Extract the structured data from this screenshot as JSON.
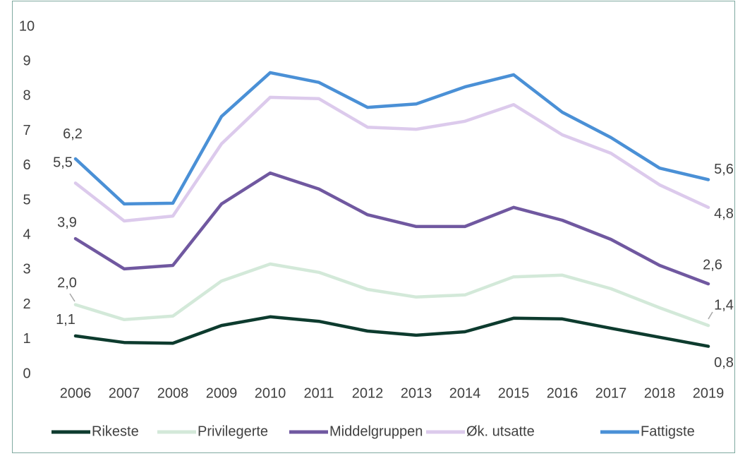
{
  "chart_data": {
    "type": "line",
    "x": [
      2006,
      2007,
      2008,
      2009,
      2010,
      2011,
      2012,
      2013,
      2014,
      2015,
      2016,
      2017,
      2018,
      2019
    ],
    "ylim": [
      0,
      10
    ],
    "yticks": [
      0,
      1,
      2,
      3,
      4,
      5,
      6,
      7,
      8,
      9,
      10
    ],
    "grid": false,
    "legend": "bottom",
    "series": [
      {
        "name": "Rikeste",
        "color": "#0d3b2e",
        "values": [
          1.1,
          0.91,
          0.89,
          1.4,
          1.65,
          1.52,
          1.24,
          1.12,
          1.22,
          1.61,
          1.59,
          1.32,
          1.06,
          0.8
        ],
        "value_labels": [
          "1,1",
          null,
          null,
          null,
          null,
          null,
          null,
          null,
          null,
          null,
          null,
          null,
          null,
          "0,8"
        ]
      },
      {
        "name": "Privilegerte",
        "color": "#d3e9d9",
        "values": [
          2.0,
          1.57,
          1.67,
          2.68,
          3.17,
          2.93,
          2.44,
          2.22,
          2.28,
          2.8,
          2.85,
          2.46,
          1.91,
          1.4
        ],
        "value_labels": [
          "2,0",
          null,
          null,
          null,
          null,
          null,
          null,
          null,
          null,
          null,
          null,
          null,
          null,
          "1,4"
        ]
      },
      {
        "name": "Middelgruppen",
        "color": "#7058a0",
        "values": [
          3.9,
          3.03,
          3.13,
          4.9,
          5.79,
          5.33,
          4.59,
          4.25,
          4.25,
          4.8,
          4.43,
          3.88,
          3.13,
          2.6
        ],
        "value_labels": [
          "3,9",
          null,
          null,
          null,
          null,
          null,
          null,
          null,
          null,
          null,
          null,
          null,
          null,
          "2,6"
        ]
      },
      {
        "name": "Øk. utsatte",
        "color": "#dccaec",
        "values": [
          5.5,
          4.41,
          4.55,
          6.63,
          7.97,
          7.93,
          7.11,
          7.05,
          7.28,
          7.76,
          6.89,
          6.36,
          5.45,
          4.8
        ],
        "value_labels": [
          "5,5",
          null,
          null,
          null,
          null,
          null,
          null,
          null,
          null,
          null,
          null,
          null,
          null,
          "4,8"
        ]
      },
      {
        "name": "Fattigste",
        "color": "#4a90d6",
        "values": [
          6.2,
          4.9,
          4.92,
          7.42,
          8.68,
          8.4,
          7.68,
          7.78,
          8.27,
          8.62,
          7.54,
          6.81,
          5.93,
          5.6
        ],
        "value_labels": [
          "6,2",
          null,
          null,
          null,
          null,
          null,
          null,
          null,
          null,
          null,
          null,
          null,
          null,
          "5,6"
        ]
      }
    ]
  }
}
